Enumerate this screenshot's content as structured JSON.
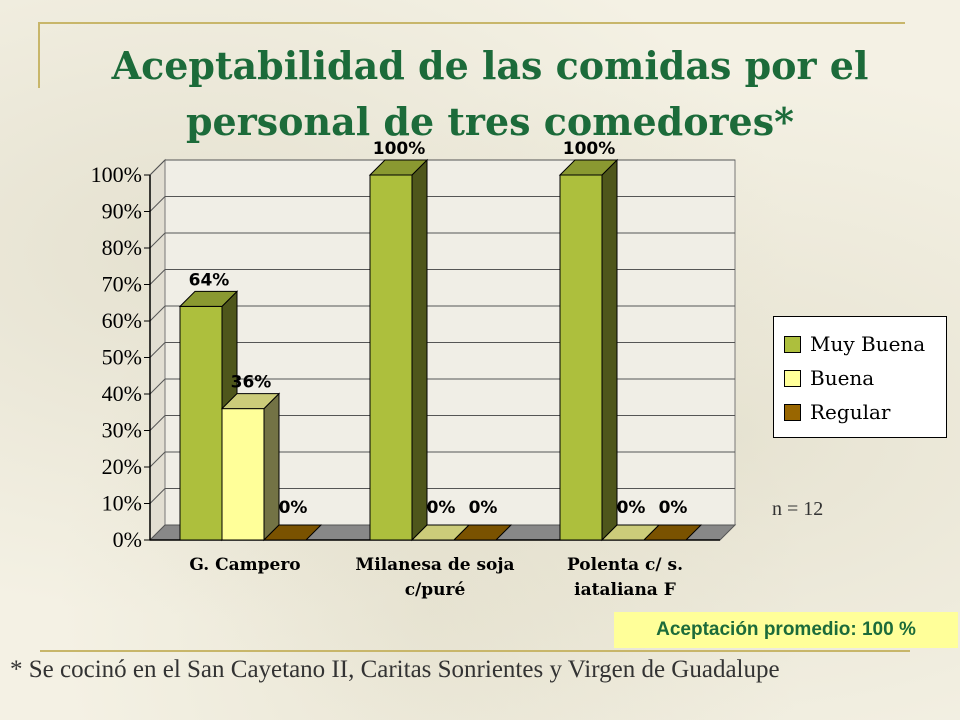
{
  "slide": {
    "title_line1": "Aceptabilidad de las comidas por el",
    "title_line2": "personal de tres comedores*",
    "sample_note": "n = 12",
    "average_box": "Aceptación promedio: 100 %",
    "footnote": "* Se cocinó en el San Cayetano II, Caritas Sonrientes y Virgen de Guadalupe"
  },
  "chart_data": {
    "type": "bar",
    "title": "Aceptabilidad de las comidas por el personal de tres comedores*",
    "categories": [
      [
        "G. Campero"
      ],
      [
        "Milanesa de soja",
        "c/puré"
      ],
      [
        "Polenta c/ s.",
        "iataliana F"
      ]
    ],
    "series": [
      {
        "name": "Muy Buena",
        "values": [
          64,
          100,
          100
        ],
        "labels": [
          "64%",
          "100%",
          "100%"
        ],
        "color": "#adbf3d"
      },
      {
        "name": "Buena",
        "values": [
          36,
          0,
          0
        ],
        "labels": [
          "36%",
          "0%",
          "0%"
        ],
        "color": "#ffff99"
      },
      {
        "name": "Regular",
        "values": [
          0,
          0,
          0
        ],
        "labels": [
          "0%",
          "0%",
          "0%"
        ],
        "color": "#996600"
      }
    ],
    "ylim": [
      0,
      100
    ],
    "yticks": [
      "0%",
      "10%",
      "20%",
      "30%",
      "40%",
      "50%",
      "60%",
      "70%",
      "80%",
      "90%",
      "100%"
    ],
    "grid": true,
    "legend_position": "right",
    "three_d": true
  }
}
